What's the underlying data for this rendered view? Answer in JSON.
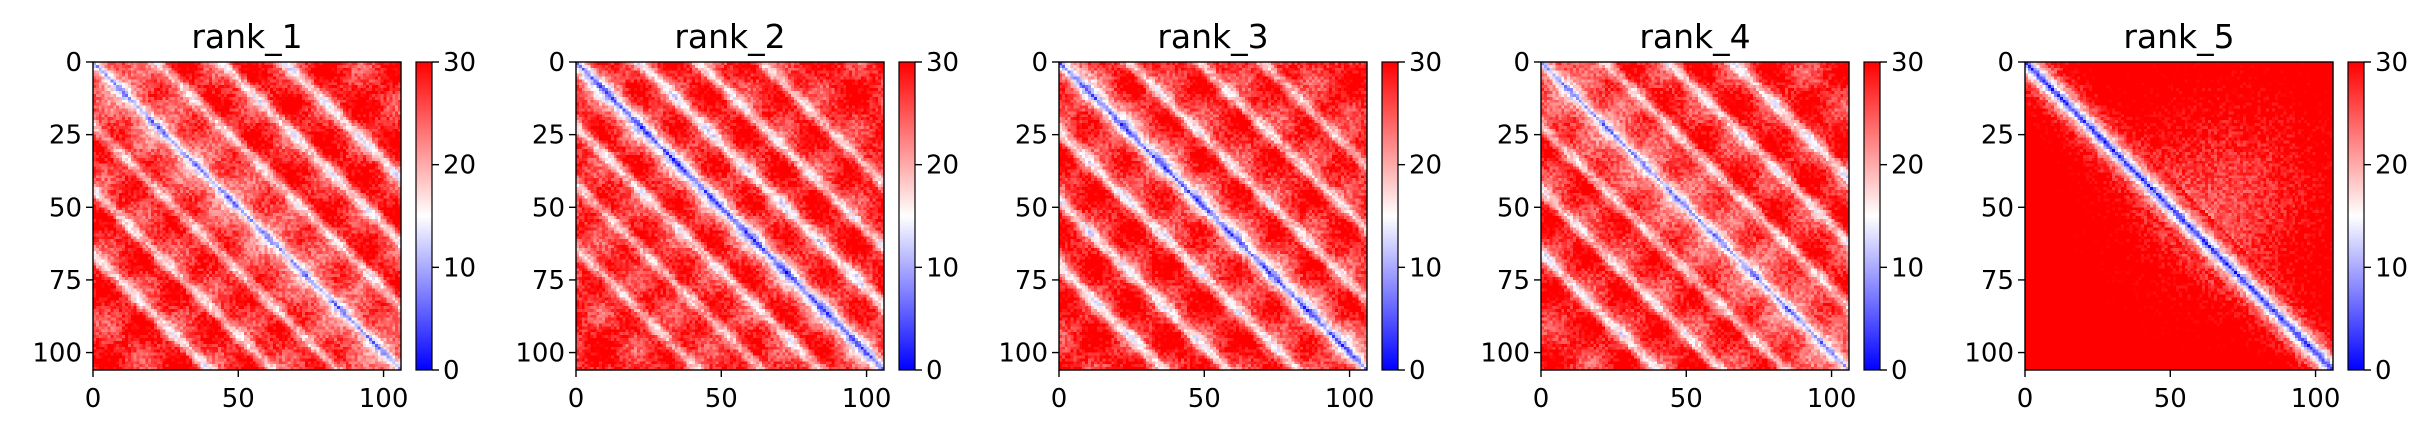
{
  "chart_data": [
    {
      "type": "heatmap",
      "title": "rank_1",
      "x_ticks": [
        "0",
        "50",
        "100"
      ],
      "y_ticks": [
        "0",
        "25",
        "50",
        "75",
        "100"
      ],
      "xlim": [
        0,
        106
      ],
      "ylim": [
        106,
        0
      ],
      "colorbar": {
        "ticks": [
          "0",
          "10",
          "20",
          "30"
        ],
        "range": [
          0,
          30
        ],
        "colormap": [
          "#0000ff",
          "#ffffff",
          "#ff0000"
        ]
      },
      "diagonal_band_offsets": [
        22,
        44,
        66
      ]
    },
    {
      "type": "heatmap",
      "title": "rank_2",
      "x_ticks": [
        "0",
        "50",
        "100"
      ],
      "y_ticks": [
        "0",
        "25",
        "50",
        "75",
        "100"
      ],
      "xlim": [
        0,
        106
      ],
      "ylim": [
        106,
        0
      ],
      "colorbar": {
        "ticks": [
          "0",
          "10",
          "20",
          "30"
        ],
        "range": [
          0,
          30
        ],
        "colormap": [
          "#0000ff",
          "#ffffff",
          "#ff0000"
        ]
      },
      "diagonal_band_offsets": [
        22,
        42,
        64
      ]
    },
    {
      "type": "heatmap",
      "title": "rank_3",
      "x_ticks": [
        "0",
        "50",
        "100"
      ],
      "y_ticks": [
        "0",
        "25",
        "50",
        "75",
        "100"
      ],
      "xlim": [
        0,
        106
      ],
      "ylim": [
        106,
        0
      ],
      "colorbar": {
        "ticks": [
          "0",
          "10",
          "20",
          "30"
        ],
        "range": [
          0,
          30
        ],
        "colormap": [
          "#0000ff",
          "#ffffff",
          "#ff0000"
        ]
      },
      "diagonal_band_offsets": [
        24,
        48,
        70
      ]
    },
    {
      "type": "heatmap",
      "title": "rank_4",
      "x_ticks": [
        "0",
        "50",
        "100"
      ],
      "y_ticks": [
        "0",
        "25",
        "50",
        "75",
        "100"
      ],
      "xlim": [
        0,
        106
      ],
      "ylim": [
        106,
        0
      ],
      "colorbar": {
        "ticks": [
          "0",
          "10",
          "20",
          "30"
        ],
        "range": [
          0,
          30
        ],
        "colormap": [
          "#0000ff",
          "#ffffff",
          "#ff0000"
        ]
      },
      "diagonal_band_offsets": [
        22,
        44,
        66
      ]
    },
    {
      "type": "heatmap",
      "title": "rank_5",
      "x_ticks": [
        "0",
        "50",
        "100"
      ],
      "y_ticks": [
        "0",
        "25",
        "50",
        "75",
        "100"
      ],
      "xlim": [
        0,
        106
      ],
      "ylim": [
        106,
        0
      ],
      "colorbar": {
        "ticks": [
          "0",
          "10",
          "20",
          "30"
        ],
        "range": [
          0,
          30
        ],
        "colormap": [
          "#0000ff",
          "#ffffff",
          "#ff0000"
        ]
      },
      "diagonal_band_offsets": []
    }
  ]
}
